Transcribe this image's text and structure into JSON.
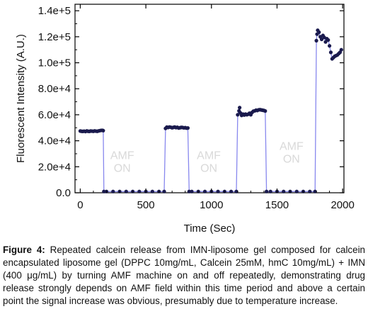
{
  "chart_data": {
    "type": "line",
    "xlabel": "Time (Sec)",
    "ylabel": "Fluorescent Intensity (A.U.)",
    "xlim": [
      -40,
      2010
    ],
    "ylim": [
      0,
      145000
    ],
    "x_ticks": [
      0,
      500,
      1000,
      1500,
      2000
    ],
    "x_tick_labels": [
      "0",
      "500",
      "1000",
      "1500",
      "2000"
    ],
    "y_ticks": [
      0,
      20000,
      40000,
      60000,
      80000,
      100000,
      120000,
      140000
    ],
    "y_tick_labels": [
      "0.0",
      "2.0e+4",
      "4.0e+4",
      "6.0e+4",
      "8.0e+4",
      "1.0e+5",
      "1.2e+5",
      "1.4e+5"
    ],
    "annotations": [
      {
        "text": [
          "AMF",
          "ON"
        ],
        "x": 320,
        "y": 26000
      },
      {
        "text": [
          "AMF",
          "ON"
        ],
        "x": 980,
        "y": 26000
      },
      {
        "text": [
          "AMF",
          "ON"
        ],
        "x": 1610,
        "y": 33000
      }
    ],
    "line_color": "#8888ee",
    "marker_color": "#1a1a4d",
    "series": [
      {
        "x": [
          0,
          10,
          20,
          30,
          40,
          50,
          60,
          70,
          80,
          90,
          100,
          110,
          120,
          130,
          140,
          150,
          160,
          170,
          175,
          180,
          200,
          250,
          300,
          350,
          400,
          450,
          500,
          550,
          600,
          640,
          650,
          660,
          670,
          680,
          690,
          700,
          710,
          720,
          730,
          740,
          750,
          760,
          770,
          780,
          790,
          800,
          810,
          820,
          830,
          850,
          900,
          950,
          1000,
          1050,
          1100,
          1150,
          1190,
          1200,
          1210,
          1215,
          1220,
          1230,
          1240,
          1250,
          1260,
          1270,
          1280,
          1290,
          1300,
          1310,
          1320,
          1330,
          1340,
          1350,
          1360,
          1370,
          1380,
          1390,
          1400,
          1410,
          1420,
          1450,
          1500,
          1550,
          1600,
          1650,
          1700,
          1750,
          1790,
          1800,
          1805,
          1810,
          1820,
          1830,
          1840,
          1850,
          1860,
          1870,
          1880,
          1890,
          1900,
          1910,
          1920,
          1930,
          1940,
          1950,
          1960,
          1970,
          1980,
          1990
        ],
        "y": [
          47500,
          47300,
          47200,
          47400,
          47100,
          47600,
          47300,
          47200,
          47500,
          47400,
          47300,
          47600,
          47400,
          47300,
          47600,
          47800,
          48000,
          48000,
          47800,
          1000,
          1000,
          1000,
          1000,
          1000,
          1000,
          1000,
          1000,
          1000,
          1000,
          1000,
          49500,
          50500,
          50200,
          50600,
          50400,
          50000,
          50300,
          50600,
          50100,
          50400,
          49800,
          50000,
          50300,
          50200,
          49900,
          50100,
          49700,
          49800,
          1000,
          1000,
          1000,
          1000,
          1000,
          1000,
          1000,
          1000,
          1000,
          60000,
          63000,
          65500,
          61500,
          59500,
          60500,
          59800,
          60500,
          60000,
          60400,
          61200,
          60000,
          61800,
          62800,
          63000,
          63500,
          63300,
          63800,
          63900,
          63700,
          63500,
          63300,
          62900,
          1000,
          1000,
          1000,
          1000,
          1000,
          1000,
          1000,
          1000,
          1000,
          117000,
          122000,
          125000,
          123500,
          120000,
          118000,
          121000,
          119500,
          116000,
          118500,
          117500,
          113000,
          108000,
          103000,
          104000,
          105000,
          105500,
          106000,
          107000,
          108000,
          110000
        ]
      }
    ]
  },
  "caption": {
    "label": "Figure 4:",
    "text": " Repeated calcein release from IMN-liposome gel composed for calcein encapsulated liposome gel (DPPC 10mg/mL, Calcein 25mM, hmC 10mg/mL) + IMN (400 μg/mL) by turning AMF machine on and off repeatedly, demonstrating drug release strongly depends on AMF field within this time period and above a certain point the signal increase was obvious, presumably due to temperature increase."
  }
}
